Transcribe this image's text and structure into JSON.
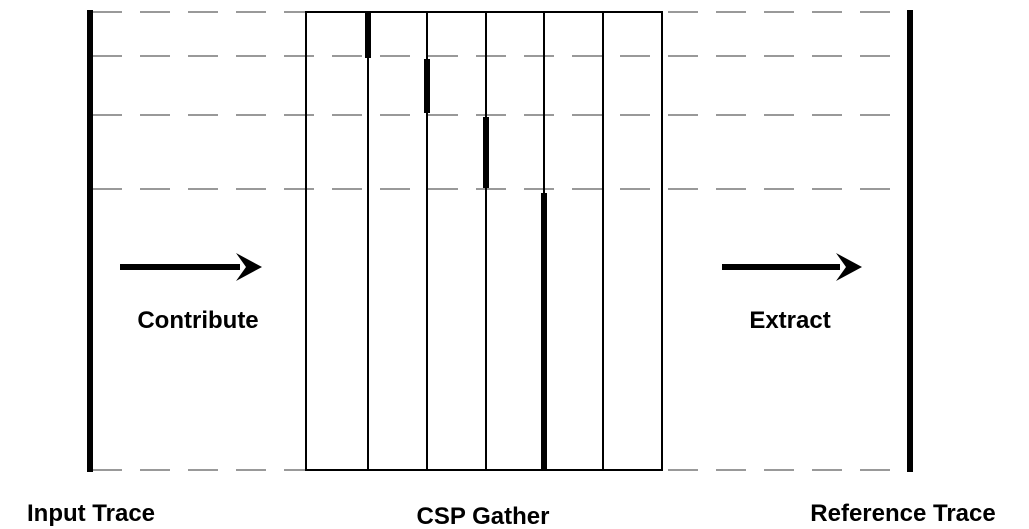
{
  "labels": {
    "input": "Input Trace",
    "gather": "CSP Gather",
    "reference": "Reference Trace"
  },
  "arrows": {
    "contribute": "Contribute",
    "extract": "Extract"
  }
}
